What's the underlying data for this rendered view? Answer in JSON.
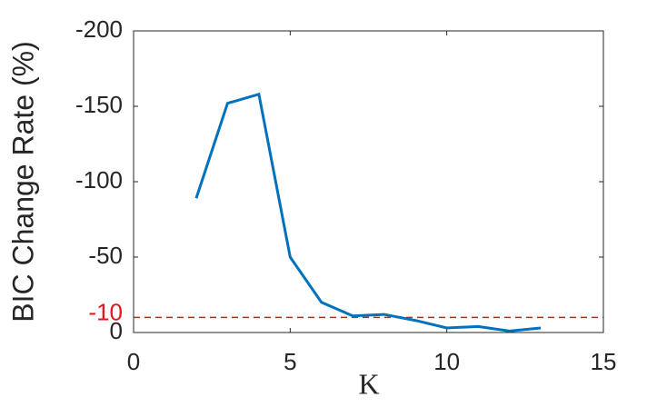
{
  "chart_data": {
    "type": "line",
    "x_label": "K",
    "y_label": "BIC Change Rate (%)",
    "x": [
      2,
      3,
      4,
      5,
      6,
      7,
      8,
      9,
      10,
      11,
      12,
      13
    ],
    "series": [
      {
        "color": "#0072bd",
        "values": [
          -89,
          -152,
          -158,
          -50,
          -20,
          -11,
          -12,
          -8,
          -3,
          -4,
          -1,
          -3
        ]
      }
    ],
    "xlim": [
      0,
      15
    ],
    "xticks": [
      0,
      5,
      10,
      15
    ],
    "ylim": [
      0,
      -200
    ],
    "yticks": [
      0,
      -50,
      -100,
      -150,
      -200
    ],
    "reference_line": {
      "value": -10,
      "color": "#e8141c"
    }
  }
}
